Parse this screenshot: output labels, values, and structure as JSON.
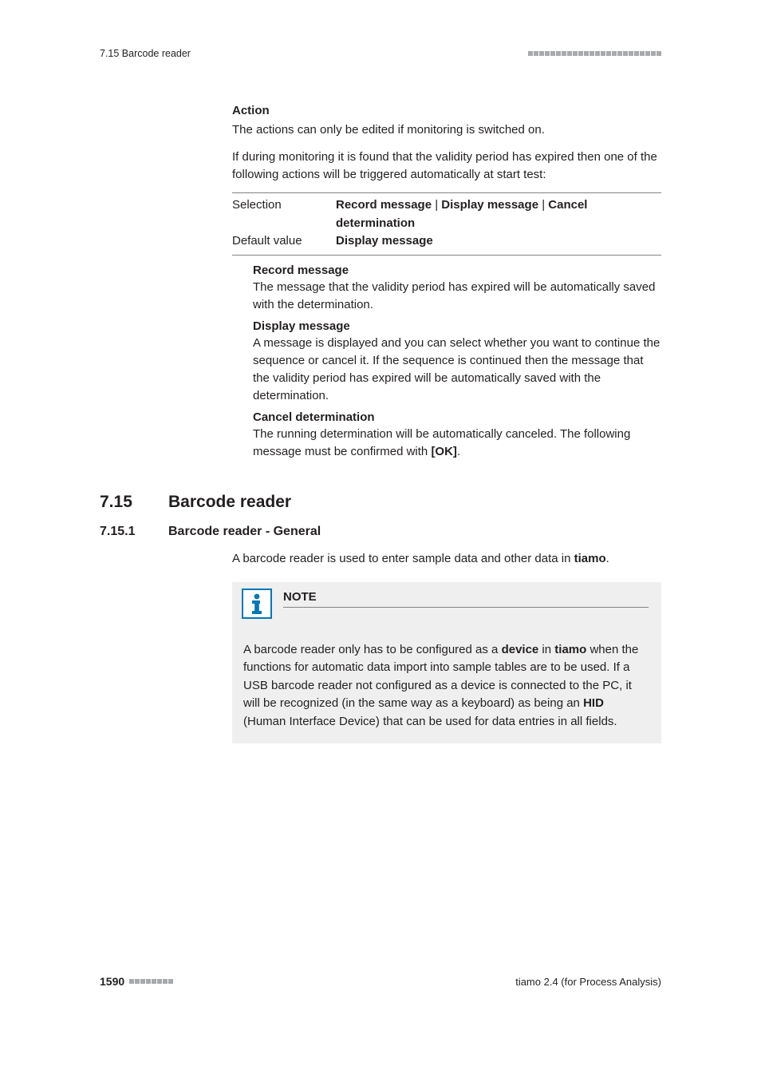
{
  "header": {
    "left": "7.15 Barcode reader",
    "square_count": 24,
    "square_color": "#a7a9ac"
  },
  "action": {
    "heading": "Action",
    "para1": "The actions can only be edited if monitoring is switched on.",
    "para2": "If during monitoring it is found that the validity period has expired then one of the following actions will be triggered automatically at start test:",
    "table": {
      "row1_label": "Selection",
      "row1_value_1": "Record message",
      "row1_value_2": "Display message",
      "row1_value_3": "Cancel determination",
      "sep": " | ",
      "row2_label": "Default value",
      "row2_value": "Display message"
    },
    "defs": {
      "record_term": "Record message",
      "record_desc": "The message that the validity period has expired will be automatically saved with the determination.",
      "display_term": "Display message",
      "display_desc": "A message is displayed and you can select whether you want to continue the sequence or cancel it. If the sequence is continued then the message that the validity period has expired will be automatically saved with the determination.",
      "cancel_term": "Cancel determination",
      "cancel_desc_pre": "The running determination will be automatically canceled. The following message must be confirmed with ",
      "cancel_ok": "[OK]",
      "cancel_desc_post": "."
    }
  },
  "section": {
    "num": "7.15",
    "title": "Barcode reader"
  },
  "subsection": {
    "num": "7.15.1",
    "title": "Barcode reader - General",
    "intro_pre": "A barcode reader is used to enter sample data and other data in ",
    "intro_tiamo": "tiamo",
    "intro_post": "."
  },
  "note": {
    "title": "NOTE",
    "body_1": "A barcode reader only has to be configured as a ",
    "device": "device",
    "body_2": " in ",
    "tiamo": "tiamo",
    "body_3": " when the functions for automatic data import into sample tables are to be used. If a USB barcode reader not configured as a device is connected to the PC, it will be recognized (in the same way as a keyboard) as being an ",
    "hid": "HID",
    "body_4": " (Human Interface Device) that can be used for data entries in all fields.",
    "icon_color": "#0078b6"
  },
  "footer": {
    "page": "1590",
    "square_count": 8,
    "square_color": "#a7a9ac",
    "right": "tiamo 2.4 (for Process Analysis)"
  }
}
